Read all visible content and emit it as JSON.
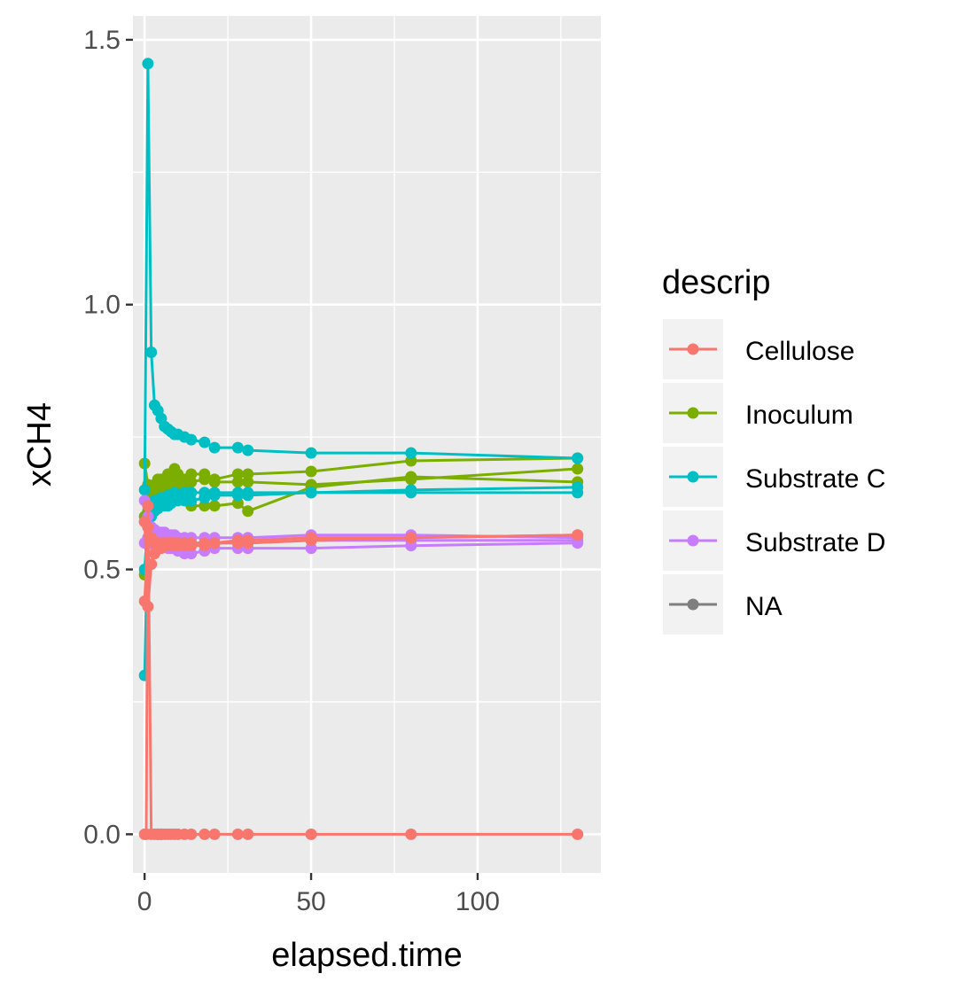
{
  "chart_data": {
    "type": "line",
    "title": "",
    "xlabel": "elapsed.time",
    "ylabel": "xCH4",
    "xlim": [
      -3.5,
      137
    ],
    "ylim": [
      -0.073,
      1.545
    ],
    "x_ticks": [
      0,
      50,
      100
    ],
    "x_tick_labels": [
      "0",
      "50",
      "100"
    ],
    "y_ticks": [
      0.0,
      0.5,
      1.0,
      1.5
    ],
    "y_tick_labels": [
      "0.0",
      "0.5",
      "1.0",
      "1.5"
    ],
    "x_minor": [
      25,
      75,
      125
    ],
    "y_minor": [
      0.25,
      0.75,
      1.25
    ],
    "grid": true,
    "panel_background": "#ebebeb",
    "legend": {
      "title": "descrip",
      "position": "right",
      "entries": [
        {
          "label": "Cellulose",
          "color": "#F8766D"
        },
        {
          "label": "Inoculum",
          "color": "#7CAE00"
        },
        {
          "label": "Substrate C",
          "color": "#00BFC4"
        },
        {
          "label": "Substrate D",
          "color": "#C77CFF"
        },
        {
          "label": "NA",
          "color": "#7F7F7F"
        }
      ]
    },
    "series": [
      {
        "name": "NA",
        "color": "#7F7F7F",
        "x": [
          4,
          5
        ],
        "y": [
          0.0,
          0.0
        ]
      },
      {
        "name": "Inoculum",
        "color": "#7CAE00",
        "x": [
          0,
          1,
          2,
          3,
          4,
          5,
          6,
          7,
          8,
          9,
          10,
          12,
          14,
          18,
          21,
          28,
          31,
          50,
          80,
          130
        ],
        "y": [
          0.7,
          0.66,
          0.64,
          0.66,
          0.67,
          0.67,
          0.67,
          0.68,
          0.68,
          0.69,
          0.68,
          0.67,
          0.68,
          0.68,
          0.67,
          0.68,
          0.68,
          0.685,
          0.705,
          0.71
        ]
      },
      {
        "name": "Inoculum",
        "color": "#7CAE00",
        "x": [
          0,
          1,
          2,
          3,
          4,
          5,
          6,
          7,
          8,
          9,
          10,
          12,
          14,
          18,
          21,
          28,
          31,
          50,
          80,
          130
        ],
        "y": [
          0.49,
          0.61,
          0.64,
          0.65,
          0.65,
          0.66,
          0.66,
          0.66,
          0.66,
          0.665,
          0.66,
          0.66,
          0.665,
          0.67,
          0.665,
          0.665,
          0.665,
          0.66,
          0.67,
          0.69
        ]
      },
      {
        "name": "Inoculum",
        "color": "#7CAE00",
        "x": [
          0,
          1,
          2,
          3,
          4,
          5,
          6,
          7,
          8,
          9,
          10,
          12,
          14,
          18,
          21,
          28,
          31,
          50,
          80,
          130
        ],
        "y": [
          0.6,
          0.63,
          0.64,
          0.64,
          0.64,
          0.64,
          0.645,
          0.645,
          0.645,
          0.645,
          0.64,
          0.64,
          0.62,
          0.62,
          0.62,
          0.625,
          0.61,
          0.655,
          0.675,
          0.665
        ]
      },
      {
        "name": "Substrate C",
        "color": "#00BFC4",
        "x": [
          0,
          1,
          2,
          3,
          4,
          5,
          6,
          7,
          8,
          9,
          10,
          12,
          14,
          18,
          21,
          28,
          31,
          50,
          80,
          130
        ],
        "y": [
          0.65,
          1.455,
          0.91,
          0.81,
          0.8,
          0.785,
          0.77,
          0.765,
          0.76,
          0.755,
          0.755,
          0.75,
          0.745,
          0.74,
          0.73,
          0.73,
          0.725,
          0.72,
          0.72,
          0.71
        ]
      },
      {
        "name": "Substrate C",
        "color": "#00BFC4",
        "x": [
          0,
          1,
          2,
          3,
          4,
          5,
          6,
          7,
          8,
          9,
          10,
          12,
          14,
          18,
          21,
          28,
          31,
          50,
          80,
          130
        ],
        "y": [
          0.5,
          0.6,
          0.62,
          0.63,
          0.63,
          0.635,
          0.635,
          0.64,
          0.64,
          0.645,
          0.64,
          0.645,
          0.645,
          0.645,
          0.645,
          0.645,
          0.645,
          0.645,
          0.65,
          0.655
        ]
      },
      {
        "name": "Substrate C",
        "color": "#00BFC4",
        "x": [
          0,
          1,
          2,
          3,
          4,
          5,
          6,
          7,
          8,
          9,
          10,
          12,
          14,
          18,
          21,
          28,
          31,
          50,
          80,
          130
        ],
        "y": [
          0.3,
          0.58,
          0.6,
          0.61,
          0.615,
          0.62,
          0.62,
          0.62,
          0.625,
          0.63,
          0.63,
          0.63,
          0.63,
          0.635,
          0.64,
          0.64,
          0.64,
          0.645,
          0.645,
          0.645
        ]
      },
      {
        "name": "Substrate D",
        "color": "#C77CFF",
        "x": [
          0,
          1,
          2,
          3,
          4,
          5,
          6,
          7,
          8,
          9,
          10,
          12,
          14,
          18,
          21,
          28,
          31,
          50,
          80,
          130
        ],
        "y": [
          0.63,
          0.6,
          0.58,
          0.575,
          0.57,
          0.57,
          0.57,
          0.565,
          0.565,
          0.565,
          0.56,
          0.56,
          0.56,
          0.56,
          0.56,
          0.56,
          0.56,
          0.565,
          0.565,
          0.56
        ]
      },
      {
        "name": "Substrate D",
        "color": "#C77CFF",
        "x": [
          0,
          1,
          2,
          3,
          4,
          5,
          6,
          7,
          8,
          9,
          10,
          12,
          14,
          18,
          21,
          28,
          31,
          50,
          80,
          130
        ],
        "y": [
          0.55,
          0.555,
          0.555,
          0.555,
          0.555,
          0.555,
          0.555,
          0.555,
          0.55,
          0.55,
          0.55,
          0.55,
          0.55,
          0.55,
          0.55,
          0.55,
          0.55,
          0.555,
          0.555,
          0.555
        ]
      },
      {
        "name": "Substrate D",
        "color": "#C77CFF",
        "x": [
          0,
          1,
          2,
          3,
          4,
          5,
          6,
          7,
          8,
          9,
          10,
          12,
          14,
          18,
          21,
          28,
          31,
          50,
          80,
          130
        ],
        "y": [
          0.59,
          0.56,
          0.55,
          0.545,
          0.545,
          0.545,
          0.545,
          0.54,
          0.54,
          0.54,
          0.535,
          0.53,
          0.53,
          0.535,
          0.54,
          0.54,
          0.54,
          0.54,
          0.545,
          0.55
        ]
      },
      {
        "name": "Cellulose",
        "color": "#F8766D",
        "x": [
          0,
          1,
          2,
          3,
          4,
          5,
          6,
          7,
          8,
          9,
          10,
          12,
          14,
          18,
          21,
          28,
          31,
          50,
          80,
          130
        ],
        "y": [
          0.44,
          0.58,
          0.56,
          0.55,
          0.55,
          0.55,
          0.55,
          0.55,
          0.55,
          0.545,
          0.545,
          0.545,
          0.545,
          0.545,
          0.55,
          0.55,
          0.55,
          0.555,
          0.56,
          0.565
        ]
      },
      {
        "name": "Cellulose",
        "color": "#F8766D",
        "x": [
          0,
          1,
          2,
          3,
          4,
          5,
          6,
          7,
          8,
          9,
          10,
          12,
          14,
          18,
          21,
          28,
          31,
          50,
          80,
          130
        ],
        "y": [
          0.59,
          0.43,
          0.51,
          0.53,
          0.54,
          0.54,
          0.545,
          0.545,
          0.55,
          0.55,
          0.55,
          0.55,
          0.55,
          0.55,
          0.55,
          0.555,
          0.555,
          0.56,
          0.56,
          0.565
        ]
      },
      {
        "name": "Cellulose",
        "color": "#F8766D",
        "x": [
          0,
          0.5,
          1,
          2,
          3,
          4,
          5,
          6,
          7,
          8,
          9,
          10,
          12,
          14,
          18,
          21,
          28,
          31,
          50,
          80,
          130
        ],
        "y": [
          0.0,
          0.0,
          0.62,
          0.0,
          0.0,
          0.0,
          0.0,
          0.0,
          0.0,
          0.0,
          0.0,
          0.0,
          0.0,
          0.0,
          0.0,
          0.0,
          0.0,
          0.0,
          0.0,
          0.0,
          0.0
        ]
      }
    ]
  }
}
